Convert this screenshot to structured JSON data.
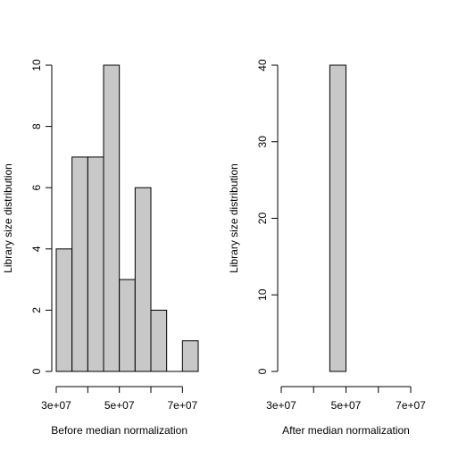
{
  "chart_data": [
    {
      "type": "bar",
      "title": "",
      "xlabel": "Before median normalization",
      "ylabel": "Library size distribution",
      "bins": [
        {
          "x0": 30000000.0,
          "x1": 35000000.0,
          "value": 4
        },
        {
          "x0": 35000000.0,
          "x1": 40000000.0,
          "value": 7
        },
        {
          "x0": 40000000.0,
          "x1": 45000000.0,
          "value": 7
        },
        {
          "x0": 45000000.0,
          "x1": 50000000.0,
          "value": 10
        },
        {
          "x0": 50000000.0,
          "x1": 55000000.0,
          "value": 3
        },
        {
          "x0": 55000000.0,
          "x1": 60000000.0,
          "value": 6
        },
        {
          "x0": 60000000.0,
          "x1": 65000000.0,
          "value": 2
        },
        {
          "x0": 65000000.0,
          "x1": 70000000.0,
          "value": 0
        },
        {
          "x0": 70000000.0,
          "x1": 75000000.0,
          "value": 1
        }
      ],
      "xlim": [
        30000000.0,
        75000000.0
      ],
      "ylim": [
        0,
        10
      ],
      "xticks": [
        30000000.0,
        40000000.0,
        50000000.0,
        60000000.0,
        70000000.0
      ],
      "xtick_labels": [
        "3e+07",
        "",
        "5e+07",
        "",
        "7e+07"
      ],
      "yticks": [
        0,
        2,
        4,
        6,
        8,
        10
      ],
      "ytick_labels": [
        "0",
        "2",
        "4",
        "6",
        "8",
        "10"
      ],
      "bar_color": "#c8c8c8",
      "grid": false
    },
    {
      "type": "bar",
      "title": "",
      "xlabel": "After median normalization",
      "ylabel": "Library size distribution",
      "bins": [
        {
          "x0": 45000000.0,
          "x1": 50000000.0,
          "value": 40
        }
      ],
      "xlim": [
        30000000.0,
        70000000.0
      ],
      "ylim": [
        0,
        40
      ],
      "xticks": [
        30000000.0,
        40000000.0,
        50000000.0,
        60000000.0,
        70000000.0
      ],
      "xtick_labels": [
        "3e+07",
        "",
        "5e+07",
        "",
        "7e+07"
      ],
      "yticks": [
        0,
        10,
        20,
        30,
        40
      ],
      "ytick_labels": [
        "0",
        "10",
        "20",
        "30",
        "40"
      ],
      "bar_color": "#c8c8c8",
      "grid": false
    }
  ]
}
